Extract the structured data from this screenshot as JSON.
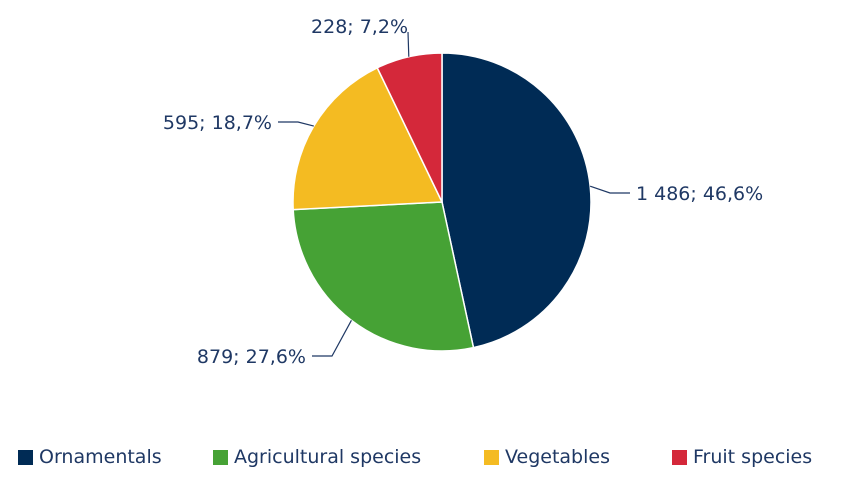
{
  "chart_data": {
    "type": "pie",
    "legend_position": "bottom",
    "slices": [
      {
        "name": "Ornamentals",
        "value": 1486,
        "percent": 46.6,
        "label": "1 486; 46,6%",
        "color": "#002b55"
      },
      {
        "name": "Agricultural species",
        "value": 879,
        "percent": 27.6,
        "label": "879; 27,6%",
        "color": "#46a235"
      },
      {
        "name": "Vegetables",
        "value": 595,
        "percent": 18.7,
        "label": "595; 18,7%",
        "color": "#f4bb22"
      },
      {
        "name": "Fruit species",
        "value": 228,
        "percent": 7.2,
        "label": "228; 7,2%",
        "color": "#d4283a"
      }
    ]
  }
}
